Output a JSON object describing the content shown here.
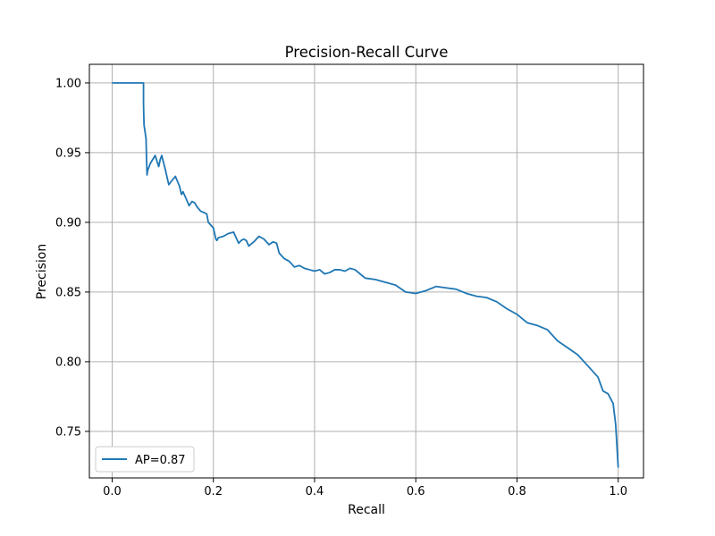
{
  "chart_data": {
    "type": "line",
    "title": "Precision-Recall Curve",
    "xlabel": "Recall",
    "ylabel": "Precision",
    "xlim": [
      -0.045,
      1.05
    ],
    "ylim": [
      0.7166,
      1.0134
    ],
    "xticks": [
      0.0,
      0.2,
      0.4,
      0.6,
      0.8,
      1.0
    ],
    "xtick_labels": [
      "0.0",
      "0.2",
      "0.4",
      "0.6",
      "0.8",
      "1.0"
    ],
    "yticks": [
      0.75,
      0.8,
      0.85,
      0.9,
      0.95,
      1.0
    ],
    "ytick_labels": [
      "0.75",
      "0.80",
      "0.85",
      "0.90",
      "0.95",
      "1.00"
    ],
    "grid": true,
    "legend_position": "lower-left",
    "colors": {
      "series": "#1f77b4",
      "grid": "#b0b0b0"
    },
    "series": [
      {
        "name": "AP=0.87",
        "x": [
          0.0,
          0.062,
          0.062,
          0.063,
          0.067,
          0.068,
          0.069,
          0.07,
          0.075,
          0.085,
          0.092,
          0.095,
          0.098,
          0.105,
          0.11,
          0.112,
          0.118,
          0.125,
          0.133,
          0.137,
          0.14,
          0.145,
          0.152,
          0.158,
          0.163,
          0.168,
          0.175,
          0.182,
          0.187,
          0.19,
          0.195,
          0.2,
          0.205,
          0.207,
          0.21,
          0.22,
          0.23,
          0.24,
          0.25,
          0.255,
          0.26,
          0.265,
          0.27,
          0.28,
          0.29,
          0.3,
          0.31,
          0.318,
          0.325,
          0.33,
          0.34,
          0.35,
          0.36,
          0.37,
          0.38,
          0.39,
          0.4,
          0.41,
          0.42,
          0.43,
          0.44,
          0.45,
          0.46,
          0.47,
          0.48,
          0.49,
          0.5,
          0.52,
          0.54,
          0.56,
          0.58,
          0.6,
          0.62,
          0.64,
          0.66,
          0.68,
          0.7,
          0.72,
          0.74,
          0.76,
          0.78,
          0.8,
          0.82,
          0.84,
          0.86,
          0.88,
          0.9,
          0.92,
          0.94,
          0.96,
          0.97,
          0.98,
          0.99,
          0.995,
          1.0
        ],
        "y": [
          1.0,
          1.0,
          0.985,
          0.97,
          0.96,
          0.945,
          0.934,
          0.937,
          0.942,
          0.948,
          0.94,
          0.945,
          0.948,
          0.938,
          0.93,
          0.927,
          0.93,
          0.933,
          0.926,
          0.92,
          0.922,
          0.918,
          0.912,
          0.915,
          0.914,
          0.911,
          0.908,
          0.907,
          0.906,
          0.9,
          0.898,
          0.896,
          0.888,
          0.887,
          0.889,
          0.89,
          0.892,
          0.893,
          0.885,
          0.887,
          0.888,
          0.887,
          0.883,
          0.886,
          0.89,
          0.888,
          0.884,
          0.886,
          0.885,
          0.878,
          0.874,
          0.872,
          0.868,
          0.869,
          0.867,
          0.866,
          0.865,
          0.866,
          0.863,
          0.864,
          0.866,
          0.866,
          0.865,
          0.867,
          0.866,
          0.863,
          0.86,
          0.859,
          0.857,
          0.855,
          0.85,
          0.849,
          0.851,
          0.854,
          0.853,
          0.852,
          0.849,
          0.847,
          0.846,
          0.843,
          0.838,
          0.834,
          0.828,
          0.826,
          0.823,
          0.815,
          0.81,
          0.805,
          0.797,
          0.789,
          0.779,
          0.777,
          0.77,
          0.755,
          0.724
        ]
      }
    ]
  }
}
